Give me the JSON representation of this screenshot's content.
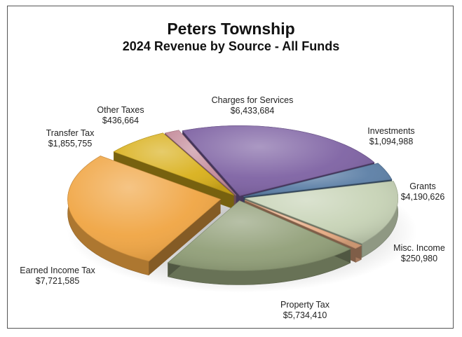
{
  "chart_data": {
    "type": "pie",
    "title": "Peters Township",
    "subtitle": "2024 Revenue by Source - All Funds",
    "slices": [
      {
        "label": "Charges for Services",
        "value_text": "$6,433,684",
        "value": 6433684,
        "color": "#7e62a3"
      },
      {
        "label": "Investments",
        "value_text": "$1,094,988",
        "value": 1094988,
        "color": "#5c7fa6"
      },
      {
        "label": "Grants",
        "value_text": "$4,190,626",
        "value": 4190626,
        "color": "#c7d3b6"
      },
      {
        "label": "Misc. Income",
        "value_text": "$250,980",
        "value": 250980,
        "color": "#e6aa82"
      },
      {
        "label": "Property Tax",
        "value_text": "$5,734,410",
        "value": 5734410,
        "color": "#919f78"
      },
      {
        "label": "Earned Income Tax",
        "value_text": "$7,721,585",
        "value": 7721585,
        "color": "#f0a543"
      },
      {
        "label": "Transfer Tax",
        "value_text": "$1,855,755",
        "value": 1855755,
        "color": "#d9b01b"
      },
      {
        "label": "Other Taxes",
        "value_text": "$436,664",
        "value": 436664,
        "color": "#c48b9a"
      }
    ]
  }
}
